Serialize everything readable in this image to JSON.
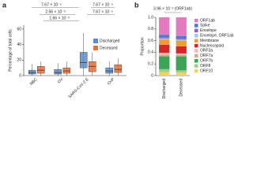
{
  "chart_data": [
    {
      "type": "box",
      "panel": "a",
      "y_label": "Percentage of total cells",
      "categories": [
        "NBC",
        "OV",
        "SARS-CoV-2 E",
        "OvP"
      ],
      "ylim": [
        0,
        65
      ],
      "yticks": [
        0,
        20,
        40,
        60
      ],
      "legend": "upper right",
      "annotations": [
        "7.67 × 10⁻⁵",
        "7.67 × 10⁻⁵",
        "2.56 × 10⁻³",
        "1.66 × 10⁻³",
        "7.67 × 10⁻⁵"
      ],
      "series": [
        {
          "name": "Discharged",
          "color": "#5b8cc8",
          "min": [
            0,
            0,
            0,
            0
          ],
          "q1": [
            2,
            2,
            10,
            3
          ],
          "median": [
            4,
            4,
            17,
            6
          ],
          "q3": [
            7,
            8,
            30,
            10
          ],
          "max": [
            15,
            16,
            55,
            18
          ]
        },
        {
          "name": "Deceased",
          "color": "#e8703a",
          "min": [
            0,
            0,
            0,
            0
          ],
          "q1": [
            3,
            3,
            5,
            4
          ],
          "median": [
            7,
            6,
            12,
            8
          ],
          "q3": [
            12,
            10,
            18,
            14
          ],
          "max": [
            18,
            18,
            30,
            22
          ]
        }
      ]
    },
    {
      "type": "stacked_bar",
      "panel": "b",
      "y_label": "Proportion",
      "annotation": "3.96 × 10⁻³ (ORF1ab)",
      "categories": [
        "Discharged",
        "Deceased"
      ],
      "ylim": [
        0,
        1
      ],
      "yticks": [
        0,
        0.2,
        0.4,
        0.6,
        0.8,
        {
          "value": 1,
          "label": "1.0"
        }
      ],
      "legend": "right",
      "series": [
        {
          "name": "ORF1ab",
          "color": "#e579c0",
          "values": [
            0.3,
            0.32
          ]
        },
        {
          "name": "Spike",
          "color": "#4a7bd1",
          "values": [
            0.04,
            0.04
          ]
        },
        {
          "name": "Envelope",
          "color": "#8b5fc7",
          "values": [
            0.02,
            0.02
          ]
        },
        {
          "name": "Envelope, ORF1ab",
          "color": "#9dc8e8",
          "values": [
            0.02,
            0.02
          ]
        },
        {
          "name": "Membrane",
          "color": "#f39c33",
          "values": [
            0.09,
            0.1
          ]
        },
        {
          "name": "Nucleocapsid",
          "color": "#d62728",
          "values": [
            0.14,
            0.12
          ]
        },
        {
          "name": "ORF3a",
          "color": "#f4b6c2",
          "values": [
            0.03,
            0.02
          ]
        },
        {
          "name": "ORF7a",
          "color": "#c7b08a",
          "values": [
            0.03,
            0.03
          ]
        },
        {
          "name": "ORF7b",
          "color": "#3aa655",
          "values": [
            0.22,
            0.24
          ]
        },
        {
          "name": "ORF8",
          "color": "#9fd08a",
          "values": [
            0.05,
            0.04
          ]
        },
        {
          "name": "ORF10",
          "color": "#f2d35f",
          "values": [
            0.06,
            0.05
          ]
        }
      ]
    }
  ]
}
